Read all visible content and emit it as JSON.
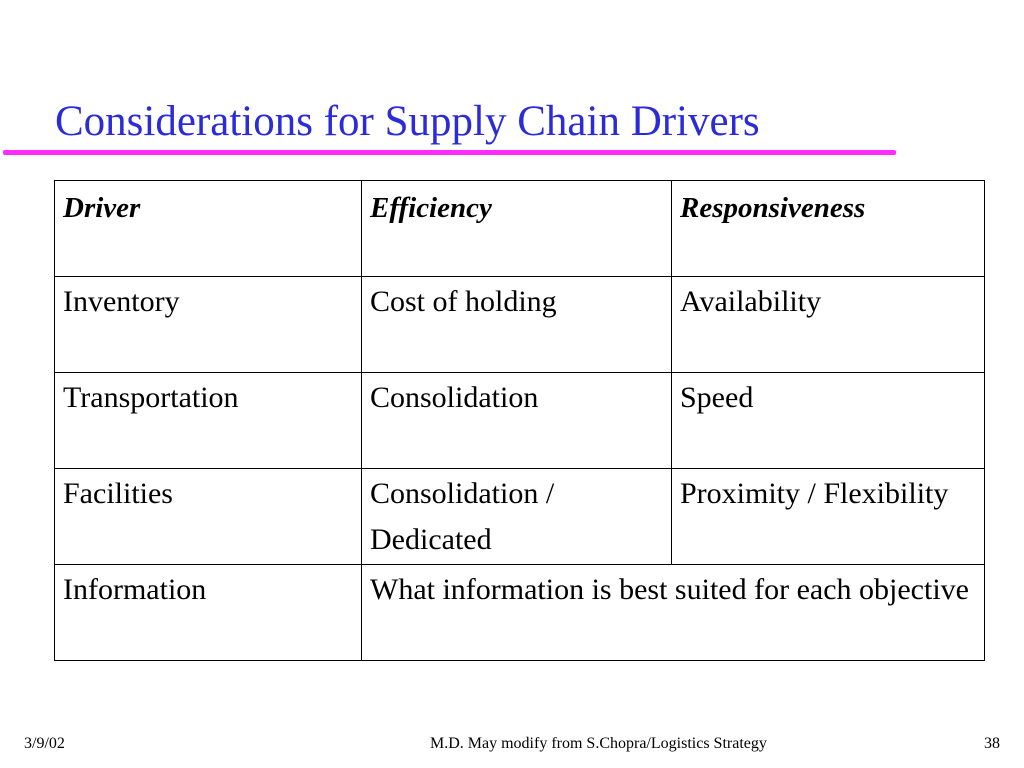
{
  "slide": {
    "title": "Considerations for Supply Chain Drivers",
    "title_color": "#2b2bd9",
    "rule_color": "#ff2bff"
  },
  "table": {
    "headers": [
      "Driver",
      "Efficiency",
      "Responsiveness"
    ],
    "rows": [
      {
        "driver": "Inventory",
        "efficiency": "Cost of holding",
        "responsiveness": "Availability"
      },
      {
        "driver": "Transportation",
        "efficiency": "Consolidation",
        "responsiveness": "Speed"
      },
      {
        "driver": "Facilities",
        "efficiency": "Consolidation / Dedicated",
        "responsiveness": "Proximity / Flexibility"
      },
      {
        "driver": "Information",
        "merged": "What information is best suited for each objective"
      }
    ]
  },
  "footer": {
    "date": "3/9/02",
    "source": "M.D. May modify from S.Chopra/Logistics Strategy",
    "page_number": "38"
  }
}
